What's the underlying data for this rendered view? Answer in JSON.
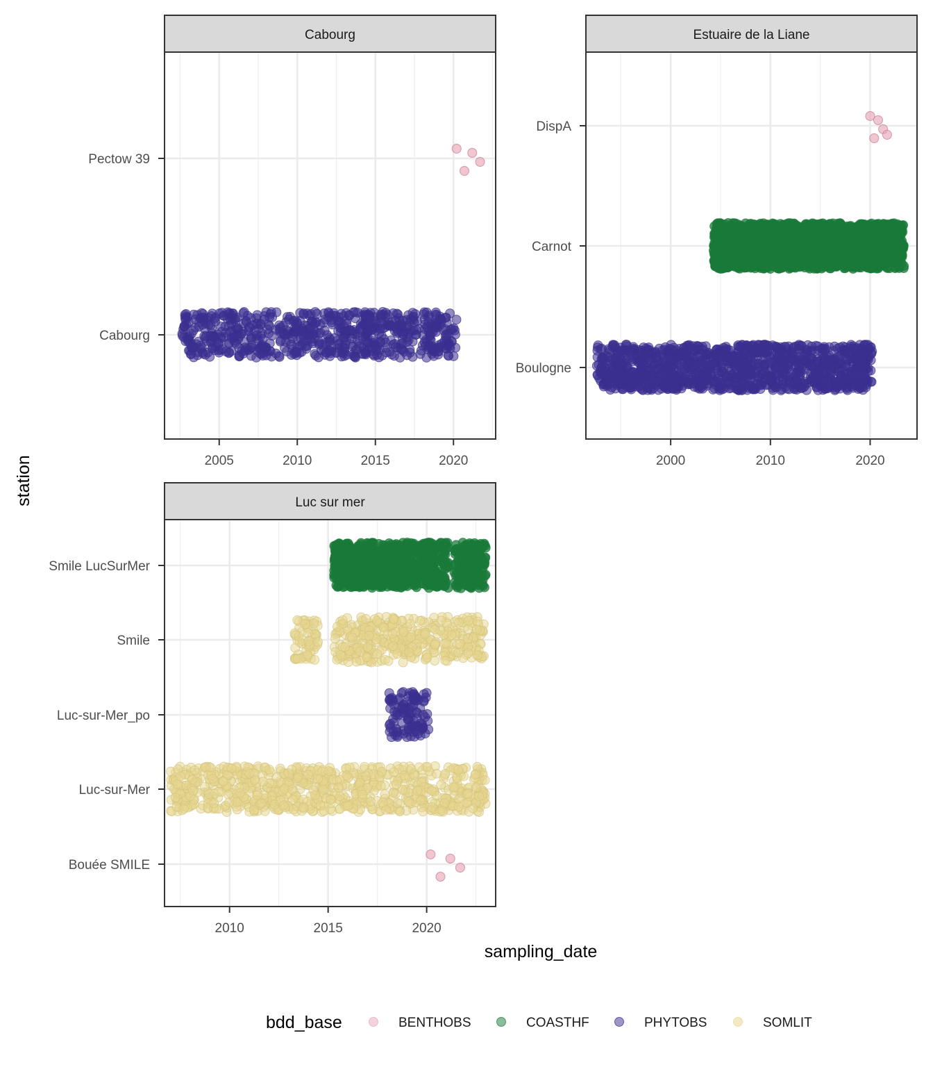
{
  "chart_data": {
    "type": "scatter",
    "xlabel": "sampling_date",
    "ylabel": "station",
    "legend": {
      "title": "bdd_base",
      "position": "bottom",
      "entries": [
        {
          "name": "BENTHOBS",
          "color": "#e8a8b8"
        },
        {
          "name": "COASTHF",
          "color": "#1a7a3a"
        },
        {
          "name": "PHYTOBS",
          "color": "#3a2f8f"
        },
        {
          "name": "SOMLIT",
          "color": "#e6d68f"
        }
      ]
    },
    "panels": [
      {
        "strip": "Cabourg",
        "xlim": [
          2001.5,
          2022.7
        ],
        "xticks": [
          2005,
          2010,
          2015,
          2020
        ],
        "xtick_labels": [
          "2005",
          "2010",
          "2015",
          "2020"
        ],
        "stations": [
          "Cabourg",
          "Pectow 39"
        ],
        "series": [
          {
            "name": "PHYTOBS",
            "station": "Cabourg",
            "x_range": [
              2002.6,
              2020.2
            ],
            "n": 700
          },
          {
            "name": "BENTHOBS",
            "station": "Pectow 39",
            "points": [
              2020.2,
              2020.7,
              2021.2,
              2021.7
            ]
          }
        ]
      },
      {
        "strip": "Estuaire de la Liane",
        "xlim": [
          1991.5,
          2024.7
        ],
        "xticks": [
          2000,
          2010,
          2020
        ],
        "xtick_labels": [
          "2000",
          "2010",
          "2020"
        ],
        "stations": [
          "Boulogne",
          "Carnot",
          "DispA"
        ],
        "series": [
          {
            "name": "PHYTOBS",
            "station": "Boulogne",
            "x_range": [
              1992.6,
              2020.2
            ],
            "n": 1200
          },
          {
            "name": "COASTHF",
            "station": "Carnot",
            "x_range": [
              2004.3,
              2023.4
            ],
            "n": 1900
          },
          {
            "name": "BENTHOBS",
            "station": "DispA",
            "points": [
              2020.0,
              2020.4,
              2020.8,
              2021.3,
              2021.7
            ]
          }
        ]
      },
      {
        "strip": "Luc sur mer",
        "xlim": [
          2006.7,
          2023.5
        ],
        "xticks": [
          2010,
          2015,
          2020
        ],
        "xtick_labels": [
          "2010",
          "2015",
          "2020"
        ],
        "stations": [
          "Bouée SMILE",
          "Luc-sur-Mer",
          "Luc-sur-Mer_po",
          "Smile",
          "Smile LucSurMer"
        ],
        "series": [
          {
            "name": "BENTHOBS",
            "station": "Bouée SMILE",
            "points": [
              2020.2,
              2020.7,
              2021.2,
              2021.7
            ]
          },
          {
            "name": "SOMLIT",
            "station": "Luc-sur-Mer",
            "x_range": [
              2007.0,
              2023.0
            ],
            "n": 750
          },
          {
            "name": "PHYTOBS",
            "station": "Luc-sur-Mer_po",
            "x_range": [
              2018.1,
              2020.1
            ],
            "n": 110
          },
          {
            "name": "SOMLIT",
            "station": "Smile",
            "x_ranges": [
              [
                2013.3,
                2014.5
              ],
              [
                2015.3,
                2022.9
              ]
            ],
            "n": 430
          },
          {
            "name": "COASTHF",
            "station": "Smile LucSurMer",
            "x_ranges": [
              [
                2015.3,
                2021.1
              ],
              [
                2021.4,
                2023.0
              ]
            ],
            "n": 900
          }
        ]
      }
    ]
  }
}
